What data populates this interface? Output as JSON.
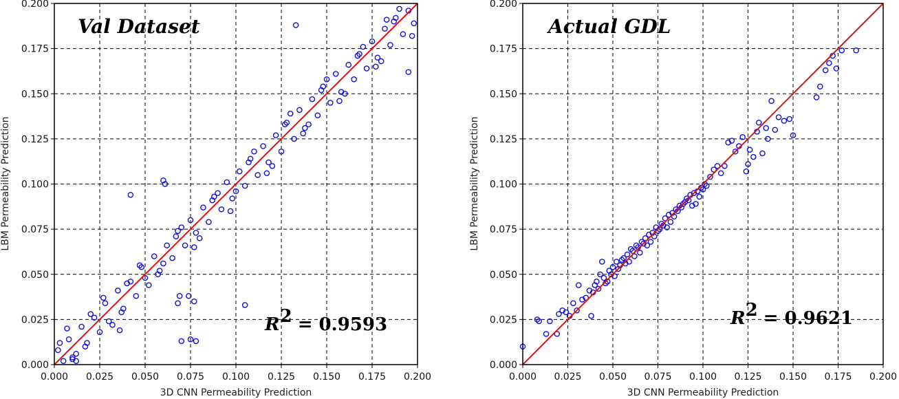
{
  "chart_data": [
    {
      "type": "scatter",
      "title": "Val Dataset",
      "xlabel": "3D CNN Permeability Prediction",
      "ylabel": "LBM Permeability Prediction",
      "xlim": [
        0,
        0.2
      ],
      "ylim": [
        0,
        0.2
      ],
      "xticks": [
        "0.000",
        "0.025",
        "0.050",
        "0.075",
        "0.100",
        "0.125",
        "0.150",
        "0.175",
        "0.200"
      ],
      "yticks": [
        "0.000",
        "0.025",
        "0.050",
        "0.075",
        "0.100",
        "0.125",
        "0.150",
        "0.175",
        "0.200"
      ],
      "grid": true,
      "r2_label": "R",
      "r2_exponent": "2",
      "r2_value": "= 0.9593",
      "marker_color": "#1010e0",
      "line_color": "#e01010",
      "reference_line": {
        "x": [
          0,
          0.2
        ],
        "y": [
          0,
          0.2
        ]
      },
      "series": [
        {
          "name": "val",
          "x": [
            0.002,
            0.005,
            0.008,
            0.012,
            0.015,
            0.018,
            0.022,
            0.025,
            0.028,
            0.032,
            0.035,
            0.038,
            0.042,
            0.045,
            0.048,
            0.052,
            0.055,
            0.058,
            0.062,
            0.065,
            0.068,
            0.072,
            0.075,
            0.078,
            0.082,
            0.085,
            0.088,
            0.092,
            0.095,
            0.098,
            0.102,
            0.105,
            0.108,
            0.112,
            0.115,
            0.118,
            0.122,
            0.125,
            0.128,
            0.132,
            0.135,
            0.138,
            0.142,
            0.145,
            0.148,
            0.152,
            0.155,
            0.158,
            0.162,
            0.165,
            0.168,
            0.172,
            0.175,
            0.178,
            0.182,
            0.185,
            0.188,
            0.192,
            0.195,
            0.198,
            0.003,
            0.01,
            0.02,
            0.03,
            0.04,
            0.05,
            0.06,
            0.07,
            0.08,
            0.09,
            0.1,
            0.11,
            0.12,
            0.13,
            0.14,
            0.15,
            0.16,
            0.17,
            0.18,
            0.19,
            0.007,
            0.017,
            0.027,
            0.037,
            0.047,
            0.057,
            0.067,
            0.077,
            0.087,
            0.097,
            0.107,
            0.117,
            0.127,
            0.137,
            0.147,
            0.157,
            0.167,
            0.177,
            0.187,
            0.197,
            0.06,
            0.061,
            0.074,
            0.075,
            0.077,
            0.078,
            0.068,
            0.069,
            0.07,
            0.133,
            0.105,
            0.195,
            0.183,
            0.01,
            0.012,
            0.042,
            0.036
          ],
          "y": [
            0.008,
            0.002,
            0.014,
            0.006,
            0.021,
            0.012,
            0.026,
            0.018,
            0.034,
            0.022,
            0.041,
            0.031,
            0.046,
            0.038,
            0.054,
            0.044,
            0.06,
            0.052,
            0.066,
            0.059,
            0.074,
            0.066,
            0.08,
            0.073,
            0.087,
            0.079,
            0.093,
            0.086,
            0.101,
            0.092,
            0.107,
            0.099,
            0.114,
            0.105,
            0.121,
            0.112,
            0.127,
            0.118,
            0.134,
            0.125,
            0.141,
            0.131,
            0.147,
            0.138,
            0.154,
            0.145,
            0.161,
            0.151,
            0.166,
            0.158,
            0.172,
            0.164,
            0.179,
            0.17,
            0.186,
            0.177,
            0.192,
            0.183,
            0.196,
            0.189,
            0.012,
            0.004,
            0.028,
            0.024,
            0.045,
            0.048,
            0.056,
            0.076,
            0.07,
            0.095,
            0.096,
            0.118,
            0.11,
            0.139,
            0.133,
            0.158,
            0.15,
            0.176,
            0.168,
            0.197,
            0.02,
            0.01,
            0.037,
            0.029,
            0.055,
            0.05,
            0.071,
            0.065,
            0.091,
            0.085,
            0.112,
            0.106,
            0.133,
            0.128,
            0.152,
            0.146,
            0.171,
            0.165,
            0.19,
            0.182,
            0.102,
            0.1,
            0.038,
            0.014,
            0.035,
            0.013,
            0.034,
            0.038,
            0.013,
            0.188,
            0.033,
            0.162,
            0.191,
            0.003,
            0.002,
            0.094,
            0.019
          ]
        }
      ]
    },
    {
      "type": "scatter",
      "title": "Actual GDL",
      "xlabel": "3D CNN Permeability Prediction",
      "ylabel": "LBM Permeability Prediction",
      "xlim": [
        0,
        0.2
      ],
      "ylim": [
        0,
        0.2
      ],
      "xticks": [
        "0.000",
        "0.025",
        "0.050",
        "0.075",
        "0.100",
        "0.125",
        "0.150",
        "0.175",
        "0.200"
      ],
      "yticks": [
        "0.000",
        "0.025",
        "0.050",
        "0.075",
        "0.100",
        "0.125",
        "0.150",
        "0.175",
        "0.200"
      ],
      "grid": true,
      "r2_label": "R",
      "r2_exponent": "2",
      "r2_value": "= 0.9621",
      "marker_color": "#1010e0",
      "line_color": "#e01010",
      "reference_line": {
        "x": [
          0,
          0.2
        ],
        "y": [
          0,
          0.2
        ]
      },
      "series": [
        {
          "name": "gdl",
          "x": [
            0.0,
            0.008,
            0.009,
            0.013,
            0.015,
            0.019,
            0.02,
            0.022,
            0.024,
            0.026,
            0.028,
            0.03,
            0.031,
            0.033,
            0.035,
            0.037,
            0.038,
            0.039,
            0.04,
            0.041,
            0.042,
            0.043,
            0.044,
            0.045,
            0.046,
            0.047,
            0.048,
            0.049,
            0.05,
            0.051,
            0.052,
            0.053,
            0.054,
            0.055,
            0.056,
            0.057,
            0.058,
            0.059,
            0.06,
            0.061,
            0.062,
            0.063,
            0.064,
            0.065,
            0.066,
            0.067,
            0.068,
            0.069,
            0.07,
            0.071,
            0.072,
            0.073,
            0.074,
            0.075,
            0.076,
            0.077,
            0.078,
            0.079,
            0.08,
            0.081,
            0.082,
            0.083,
            0.084,
            0.085,
            0.086,
            0.087,
            0.088,
            0.089,
            0.09,
            0.091,
            0.092,
            0.093,
            0.094,
            0.095,
            0.096,
            0.097,
            0.098,
            0.099,
            0.1,
            0.101,
            0.102,
            0.104,
            0.106,
            0.108,
            0.11,
            0.112,
            0.114,
            0.116,
            0.118,
            0.12,
            0.122,
            0.124,
            0.125,
            0.126,
            0.128,
            0.13,
            0.131,
            0.133,
            0.135,
            0.136,
            0.138,
            0.14,
            0.142,
            0.145,
            0.148,
            0.15,
            0.163,
            0.165,
            0.168,
            0.17,
            0.172,
            0.174,
            0.177,
            0.185
          ],
          "y": [
            0.01,
            0.025,
            0.024,
            0.017,
            0.024,
            0.017,
            0.028,
            0.03,
            0.029,
            0.027,
            0.034,
            0.03,
            0.044,
            0.036,
            0.037,
            0.041,
            0.027,
            0.04,
            0.044,
            0.046,
            0.042,
            0.05,
            0.057,
            0.048,
            0.045,
            0.046,
            0.052,
            0.05,
            0.054,
            0.049,
            0.057,
            0.053,
            0.055,
            0.058,
            0.059,
            0.056,
            0.061,
            0.057,
            0.064,
            0.063,
            0.06,
            0.066,
            0.065,
            0.062,
            0.068,
            0.067,
            0.07,
            0.066,
            0.072,
            0.068,
            0.073,
            0.071,
            0.076,
            0.074,
            0.075,
            0.078,
            0.077,
            0.081,
            0.076,
            0.083,
            0.079,
            0.084,
            0.082,
            0.086,
            0.085,
            0.088,
            0.087,
            0.089,
            0.09,
            0.092,
            0.091,
            0.094,
            0.088,
            0.095,
            0.089,
            0.096,
            0.093,
            0.098,
            0.097,
            0.1,
            0.099,
            0.104,
            0.108,
            0.11,
            0.106,
            0.11,
            0.123,
            0.124,
            0.118,
            0.121,
            0.126,
            0.107,
            0.111,
            0.119,
            0.115,
            0.129,
            0.134,
            0.117,
            0.131,
            0.125,
            0.146,
            0.13,
            0.137,
            0.135,
            0.136,
            0.127,
            0.148,
            0.154,
            0.163,
            0.167,
            0.171,
            0.164,
            0.174,
            0.174
          ]
        }
      ]
    }
  ]
}
